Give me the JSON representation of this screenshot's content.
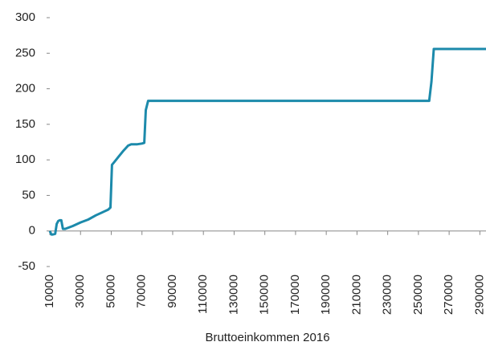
{
  "chart_data": {
    "type": "line",
    "x_label": "Bruttoeinkommen 2016",
    "series": [
      {
        "color": "#1c8aab",
        "x": [
          10000,
          11000,
          12000,
          13500,
          14500,
          15500,
          16500,
          17500,
          18500,
          20000,
          25000,
          30000,
          35000,
          40000,
          45000,
          48000,
          49500,
          50500,
          52000,
          55000,
          58000,
          61000,
          63000,
          67000,
          70000,
          71500,
          72500,
          74000,
          90000,
          120000,
          150000,
          180000,
          210000,
          240000,
          257000,
          258500,
          260000,
          275000,
          294000
        ],
        "values": [
          0,
          -5,
          -5,
          -4,
          10,
          14,
          15,
          15,
          3,
          3,
          7,
          12,
          16,
          22,
          27,
          30,
          33,
          93,
          97,
          105,
          113,
          120,
          122,
          122,
          123,
          124,
          170,
          183,
          183,
          183,
          183,
          183,
          183,
          183,
          183,
          210,
          256,
          256,
          256
        ]
      }
    ],
    "xlim": [
      10000,
      294000
    ],
    "xticks": [
      10000,
      30000,
      50000,
      70000,
      90000,
      110000,
      130000,
      150000,
      170000,
      190000,
      210000,
      230000,
      250000,
      270000,
      290000
    ],
    "ylim": [
      -50,
      300
    ],
    "yticks": [
      -50,
      0,
      50,
      100,
      150,
      200,
      250,
      300
    ]
  }
}
